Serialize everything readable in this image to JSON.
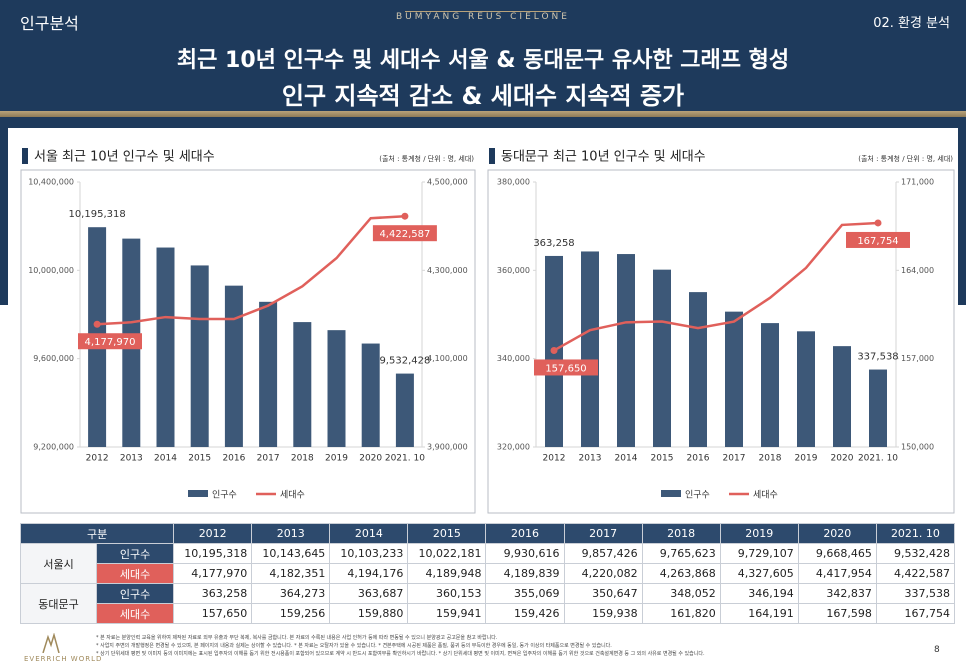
{
  "header": {
    "section": "인구분석",
    "brand": "BUMYANG REUS CIELONE",
    "chapter": "02. 환경 분석",
    "title_line1": "최근 10년 인구수 및 세대수 서울 & 동대문구 유사한 그래프 형성",
    "title_line2": "인구 지속적 감소 & 세대수 지속적 증가"
  },
  "chart_data": [
    {
      "type": "combo",
      "title": "서울 최근 10년 인구수 및 세대수",
      "source": "(출처 : 통계청 / 단위 : 명, 세대)",
      "categories": [
        "2012",
        "2013",
        "2014",
        "2015",
        "2016",
        "2017",
        "2018",
        "2019",
        "2020",
        "2021. 10"
      ],
      "ylim": [
        9200000,
        10400000
      ],
      "yticks": [
        {
          "value": 9200000,
          "label": "9,200,000"
        },
        {
          "value": 9600000,
          "label": "9,600,000"
        },
        {
          "value": 10000000,
          "label": "10,000,000"
        },
        {
          "value": 10400000,
          "label": "10,400,000"
        }
      ],
      "y2lim": [
        3900000,
        4500000
      ],
      "y2ticks": [
        {
          "value": 3900000,
          "label": "3,900,000"
        },
        {
          "value": 4100000,
          "label": "4,100,000"
        },
        {
          "value": 4300000,
          "label": "4,300,000"
        },
        {
          "value": 4500000,
          "label": "4,500,000"
        }
      ],
      "grid": false,
      "series": [
        {
          "name": "인구수",
          "type": "bar",
          "color": "#3d5878",
          "values": [
            10195318,
            10143645,
            10103233,
            10022181,
            9930616,
            9857426,
            9765623,
            9729107,
            9668465,
            9532428
          ],
          "value_labels": [
            "10,195,318",
            null,
            null,
            null,
            null,
            null,
            null,
            null,
            null,
            "9,532,428"
          ]
        },
        {
          "name": "세대수",
          "type": "line",
          "axis": "y2",
          "color": "#e0605b",
          "values": [
            4177970,
            4182351,
            4194176,
            4189948,
            4189839,
            4220082,
            4263868,
            4327605,
            4417954,
            4422587
          ],
          "value_labels": [
            "4,177,970",
            null,
            null,
            null,
            null,
            null,
            null,
            null,
            null,
            "4,422,587"
          ]
        }
      ]
    },
    {
      "type": "combo",
      "title": "동대문구 최근 10년 인구수 및 세대수",
      "source": "(출처 : 통계청 / 단위 : 명, 세대)",
      "categories": [
        "2012",
        "2013",
        "2014",
        "2015",
        "2016",
        "2017",
        "2018",
        "2019",
        "2020",
        "2021. 10"
      ],
      "ylim": [
        320000,
        380000
      ],
      "yticks": [
        {
          "value": 320000,
          "label": "320,000"
        },
        {
          "value": 340000,
          "label": "340,000"
        },
        {
          "value": 360000,
          "label": "360,000"
        },
        {
          "value": 380000,
          "label": "380,000"
        }
      ],
      "y2lim": [
        150000,
        171000
      ],
      "y2ticks": [
        {
          "value": 150000,
          "label": "150,000"
        },
        {
          "value": 157000,
          "label": "157,000"
        },
        {
          "value": 164000,
          "label": "164,000"
        },
        {
          "value": 171000,
          "label": "171,000"
        }
      ],
      "grid": false,
      "series": [
        {
          "name": "인구수",
          "type": "bar",
          "color": "#3d5878",
          "values": [
            363258,
            364273,
            363687,
            360153,
            355069,
            350647,
            348052,
            346194,
            342837,
            337538
          ],
          "value_labels": [
            "363,258",
            null,
            null,
            null,
            null,
            null,
            null,
            null,
            null,
            "337,538"
          ]
        },
        {
          "name": "세대수",
          "type": "line",
          "axis": "y2",
          "color": "#e0605b",
          "values": [
            157650,
            159256,
            159880,
            159941,
            159426,
            159938,
            161820,
            164191,
            167598,
            167754
          ],
          "value_labels": [
            "157,650",
            null,
            null,
            null,
            null,
            null,
            null,
            null,
            null,
            "167,754"
          ]
        }
      ]
    }
  ],
  "table": {
    "header": [
      "구분",
      "2012",
      "2013",
      "2014",
      "2015",
      "2016",
      "2017",
      "2018",
      "2019",
      "2020",
      "2021. 10"
    ],
    "groups": [
      {
        "name": "서울시",
        "rows": [
          {
            "label": "인구수",
            "cells": [
              "10,195,318",
              "10,143,645",
              "10,103,233",
              "10,022,181",
              "9,930,616",
              "9,857,426",
              "9,765,623",
              "9,729,107",
              "9,668,465",
              "9,532,428"
            ]
          },
          {
            "label": "세대수",
            "cells": [
              "4,177,970",
              "4,182,351",
              "4,194,176",
              "4,189,948",
              "4,189,839",
              "4,220,082",
              "4,263,868",
              "4,327,605",
              "4,417,954",
              "4,422,587"
            ]
          }
        ]
      },
      {
        "name": "동대문구",
        "rows": [
          {
            "label": "인구수",
            "cells": [
              "363,258",
              "364,273",
              "363,687",
              "360,153",
              "355,069",
              "350,647",
              "348,052",
              "346,194",
              "342,837",
              "337,538"
            ]
          },
          {
            "label": "세대수",
            "cells": [
              "157,650",
              "159,256",
              "159,880",
              "159,941",
              "159,426",
              "159,938",
              "161,820",
              "164,191",
              "167,598",
              "167,754"
            ]
          }
        ]
      }
    ]
  },
  "footer": {
    "notes": [
      "* 본 자료는 분양인력 교육을 위하여 제작된 자료로 외부 유출과 무단 복제, 복사를 금합니다. 본 자료의 수록된 내용은 사업 인허가 등에 따라 변동될 수 있으니 분양광고 공고문을 참고 바랍니다.",
      "* 사업지 주변의 개발행정은 변경될 수 있으며, 본 페이지의 내용과 실제는 상이할 수 있습니다. * 본 자료는 오탈자가 있을 수 있습니다. * 견본주택에 시공된 제품은 품질, 품귀 등의 부득이한 경우에 동일, 동가 이상의 타제품으로 변경될 수 있습니다.",
      "* 상기 단위세대 평면 및 이미지 등의 이미지에는 표시된 입주자의 이해를 돕기 위한 전시용품이 포함되어 있으므로 계약 시 반드시 포함여부를 확인하시기 바랍니다. * 상기 단위세대 평면 및 이미지, 면적은 입주자의 이해를 돕기 위한 것으로 건축설계변경 등 그 외의 사유로 변경될 수 있습니다."
    ],
    "logo": "EVERRICH WORLD",
    "page": "8"
  }
}
